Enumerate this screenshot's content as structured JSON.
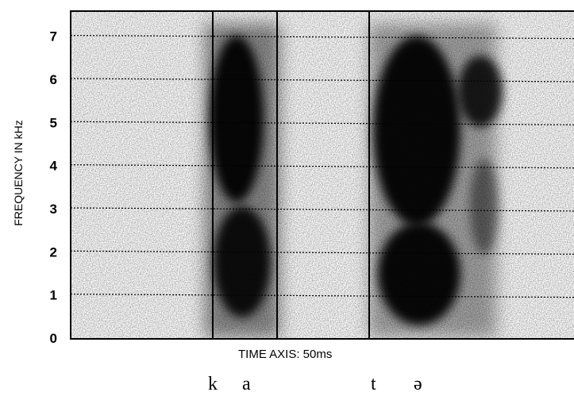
{
  "chart_data": {
    "type": "heatmap",
    "title": "",
    "ylabel": "FREQUENCY IN kHz",
    "xlabel": "TIME AXIS: 50ms",
    "ylim": [
      0,
      7.6
    ],
    "yticks": [
      "0",
      "1",
      "2",
      "3",
      "4",
      "5",
      "6",
      "7"
    ],
    "segments": [
      "k",
      "a",
      "t",
      "ə"
    ],
    "colors": {
      "ink": "#000000",
      "paper": "#ffffff"
    }
  }
}
